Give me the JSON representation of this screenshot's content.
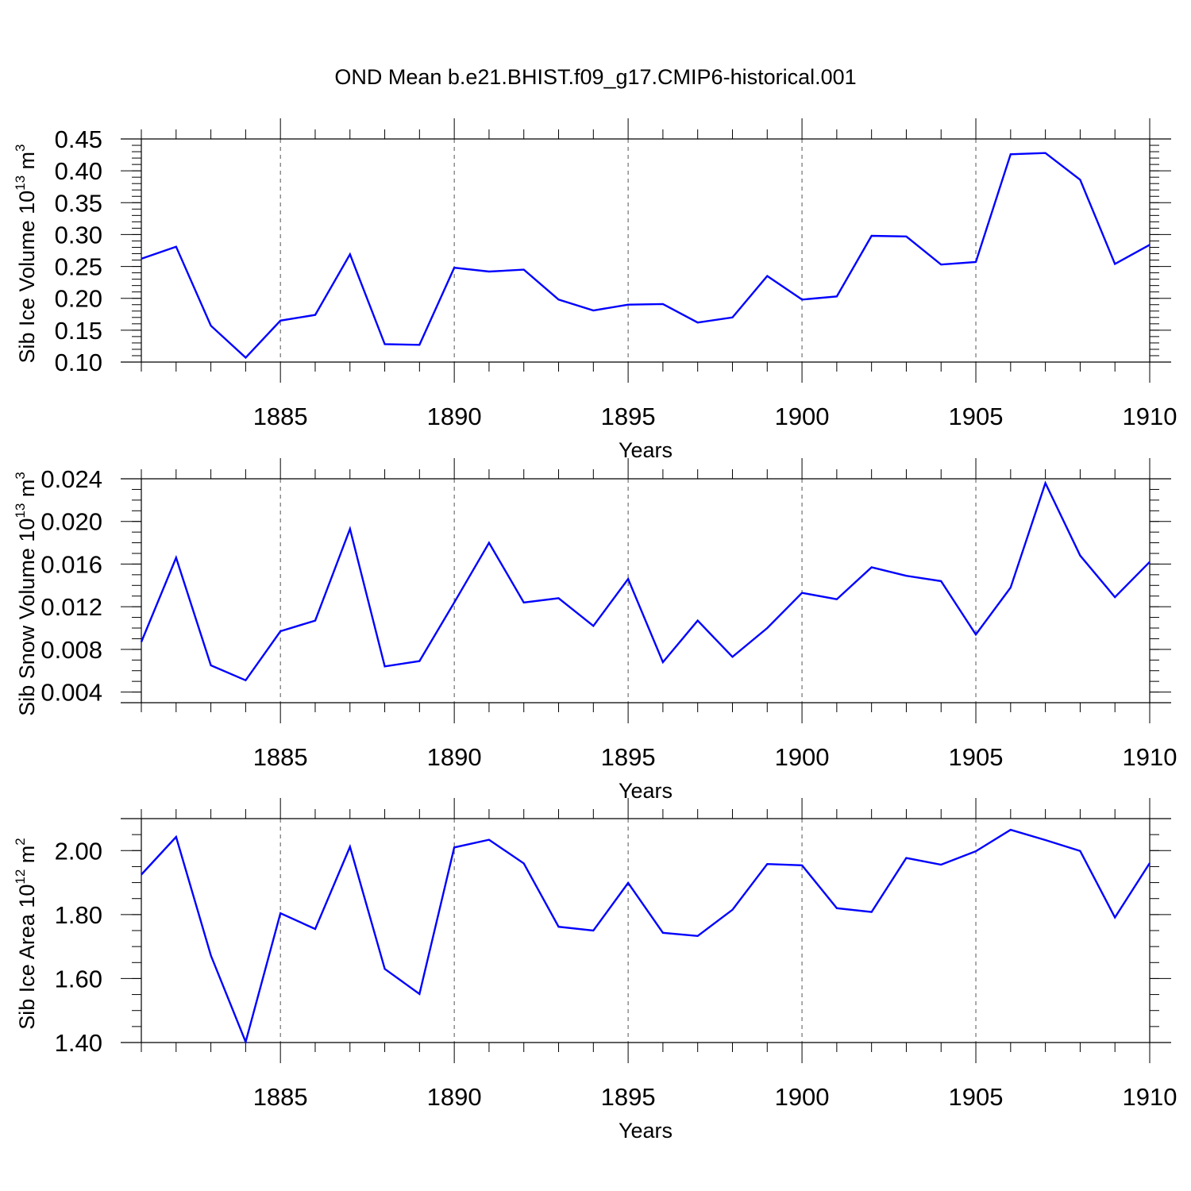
{
  "title": "OND Mean b.e21.BHIST.f09_g17.CMIP6-historical.001",
  "colors": {
    "line": "#0000ff",
    "axis": "#000000",
    "grid": "#555555"
  },
  "chart_data": [
    {
      "type": "line",
      "ylabel": {
        "text": "Sib Ice Volume 10",
        "exponent": "13",
        "unit": " m",
        "unit_exponent": "3"
      },
      "xlabel": "Years",
      "xlim": [
        1881,
        1910
      ],
      "ylim": [
        0.1,
        0.45
      ],
      "x_ticks": [
        1885,
        1890,
        1895,
        1900,
        1905,
        1910
      ],
      "y_ticks": [
        "0.10",
        "0.15",
        "0.20",
        "0.25",
        "0.30",
        "0.35",
        "0.40",
        "0.45"
      ],
      "y_minor_step": 0.01,
      "grid": "vertical dashed at major x ticks",
      "x": [
        1881,
        1882,
        1883,
        1884,
        1885,
        1886,
        1887,
        1888,
        1889,
        1890,
        1891,
        1892,
        1893,
        1894,
        1895,
        1896,
        1897,
        1898,
        1899,
        1900,
        1901,
        1902,
        1903,
        1904,
        1905,
        1906,
        1907,
        1908,
        1909,
        1910
      ],
      "values": [
        0.262,
        0.281,
        0.157,
        0.107,
        0.165,
        0.174,
        0.269,
        0.128,
        0.127,
        0.248,
        0.242,
        0.245,
        0.198,
        0.181,
        0.19,
        0.191,
        0.162,
        0.17,
        0.235,
        0.198,
        0.203,
        0.298,
        0.297,
        0.253,
        0.257,
        0.426,
        0.428,
        0.386,
        0.254,
        0.284
      ]
    },
    {
      "type": "line",
      "ylabel": {
        "text": "Sib Snow Volume 10",
        "exponent": "13",
        "unit": " m",
        "unit_exponent": "3"
      },
      "xlabel": "Years",
      "xlim": [
        1881,
        1910
      ],
      "ylim": [
        0.003,
        0.024
      ],
      "x_ticks": [
        1885,
        1890,
        1895,
        1900,
        1905,
        1910
      ],
      "y_ticks": [
        "0.004",
        "0.008",
        "0.012",
        "0.016",
        "0.020",
        "0.024"
      ],
      "y_minor_step": 0.001,
      "grid": "vertical dashed at major x ticks",
      "x": [
        1881,
        1882,
        1883,
        1884,
        1885,
        1886,
        1887,
        1888,
        1889,
        1890,
        1891,
        1892,
        1893,
        1894,
        1895,
        1896,
        1897,
        1898,
        1899,
        1900,
        1901,
        1902,
        1903,
        1904,
        1905,
        1906,
        1907,
        1908,
        1909,
        1910
      ],
      "values": [
        0.0087,
        0.0166,
        0.0065,
        0.0051,
        0.0097,
        0.0107,
        0.0193,
        0.0064,
        0.0069,
        0.0124,
        0.018,
        0.0124,
        0.0128,
        0.0102,
        0.0146,
        0.0068,
        0.0107,
        0.0073,
        0.01,
        0.0133,
        0.0127,
        0.0157,
        0.0149,
        0.0144,
        0.0094,
        0.0138,
        0.0236,
        0.0168,
        0.0129,
        0.0162
      ]
    },
    {
      "type": "line",
      "ylabel": {
        "text": "Sib Ice Area 10",
        "exponent": "12",
        "unit": " m",
        "unit_exponent": "2"
      },
      "xlabel": "Years",
      "xlim": [
        1881,
        1910
      ],
      "ylim": [
        1.4,
        2.1
      ],
      "x_ticks": [
        1885,
        1890,
        1895,
        1900,
        1905,
        1910
      ],
      "y_ticks": [
        "1.40",
        "1.60",
        "1.80",
        "2.00"
      ],
      "y_minor_step": 0.05,
      "grid": "vertical dashed at major x ticks",
      "x": [
        1881,
        1882,
        1883,
        1884,
        1885,
        1886,
        1887,
        1888,
        1889,
        1890,
        1891,
        1892,
        1893,
        1894,
        1895,
        1896,
        1897,
        1898,
        1899,
        1900,
        1901,
        1902,
        1903,
        1904,
        1905,
        1906,
        1907,
        1908,
        1909,
        1910
      ],
      "values": [
        1.925,
        2.043,
        1.672,
        1.402,
        1.804,
        1.755,
        2.012,
        1.63,
        1.552,
        2.01,
        2.034,
        1.96,
        1.762,
        1.75,
        1.899,
        1.743,
        1.733,
        1.815,
        1.958,
        1.954,
        1.82,
        1.808,
        1.977,
        1.956,
        1.998,
        2.065,
        2.033,
        1.999,
        1.791,
        1.961
      ]
    }
  ]
}
